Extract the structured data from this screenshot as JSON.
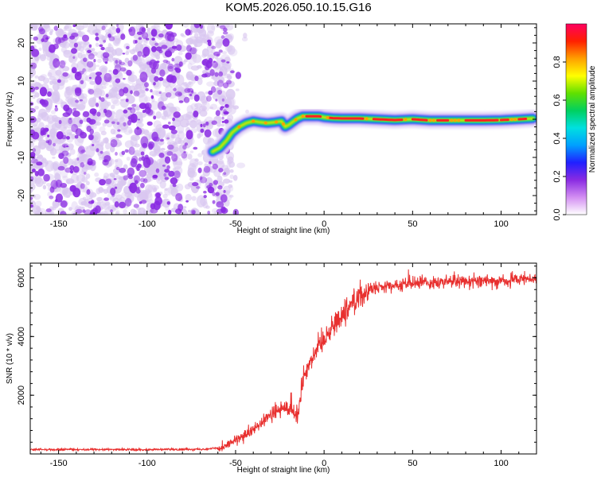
{
  "title": "KOM5.2026.050.10.15.G16",
  "colors": {
    "snr_line": "#e8302f",
    "noise_blob": "#8a2be2",
    "noise_blob_light": "#d9c7f0",
    "axis": "#000000"
  },
  "chart_data": [
    {
      "type": "heatmap",
      "name": "spectrogram",
      "xlabel": "Height of straight line (km)",
      "ylabel": "Frequency (Hz)",
      "xlim": [
        -166,
        120
      ],
      "ylim": [
        -25,
        25
      ],
      "xticks": [
        -150,
        -100,
        -50,
        0,
        50,
        100
      ],
      "yticks": [
        -20,
        -10,
        0,
        10,
        20
      ],
      "noise_region_x": [
        -166,
        -52
      ],
      "ridge": {
        "x": [
          -63,
          -59,
          -55,
          -52,
          -48,
          -44,
          -40,
          -36,
          -32,
          -28,
          -24,
          -22,
          -20,
          -18,
          -15,
          -12,
          -9,
          -6,
          -3,
          0,
          5,
          10,
          20,
          30,
          40,
          50,
          60,
          70,
          80,
          90,
          100,
          110,
          118
        ],
        "y": [
          -8.5,
          -7.5,
          -5.5,
          -3.5,
          -2,
          -1,
          -0.5,
          -0.8,
          -1,
          -0.8,
          -0.5,
          -2,
          -1.5,
          -0.8,
          0.2,
          0.8,
          0.8,
          0.8,
          0.8,
          0.5,
          0.3,
          0.2,
          0.2,
          0,
          -0.2,
          0,
          -0.3,
          -0.3,
          -0.3,
          -0.3,
          -0.2,
          0,
          0.2
        ]
      },
      "colorbar": {
        "label": "Normalized spectral amplitude",
        "ticks": [
          0.0,
          0.2,
          0.4,
          0.6,
          0.8
        ],
        "tick_labels": [
          "0.0",
          "0.2",
          "0.4",
          "0.6",
          "0.8"
        ],
        "range": [
          0,
          1
        ],
        "colors": [
          "#ffffff",
          "#d38ef2",
          "#8a2be2",
          "#2020ff",
          "#00a0ff",
          "#00e0e0",
          "#00d060",
          "#60e000",
          "#ffff00",
          "#ffa000",
          "#ff2000",
          "#ff0060"
        ]
      }
    },
    {
      "type": "line",
      "name": "snr",
      "xlabel": "Height of straight line (km)",
      "ylabel": "SNR (10 * v/v)",
      "xlim": [
        -166,
        120
      ],
      "ylim": [
        0,
        6500
      ],
      "xticks": [
        -150,
        -100,
        -50,
        0,
        50,
        100
      ],
      "yticks": [
        2000,
        4000,
        6000
      ],
      "trend": {
        "x": [
          -166,
          -100,
          -70,
          -60,
          -55,
          -50,
          -45,
          -40,
          -35,
          -30,
          -25,
          -20,
          -17,
          -15,
          -12,
          -10,
          -5,
          0,
          5,
          10,
          15,
          20,
          25,
          30,
          40,
          50,
          60,
          80,
          100,
          120
        ],
        "y": [
          150,
          150,
          160,
          200,
          300,
          450,
          600,
          800,
          1050,
          1350,
          1500,
          1600,
          1400,
          1200,
          2600,
          2900,
          3500,
          3950,
          4350,
          4750,
          5100,
          5400,
          5550,
          5650,
          5750,
          5800,
          5850,
          5900,
          5900,
          5950
        ]
      }
    }
  ]
}
